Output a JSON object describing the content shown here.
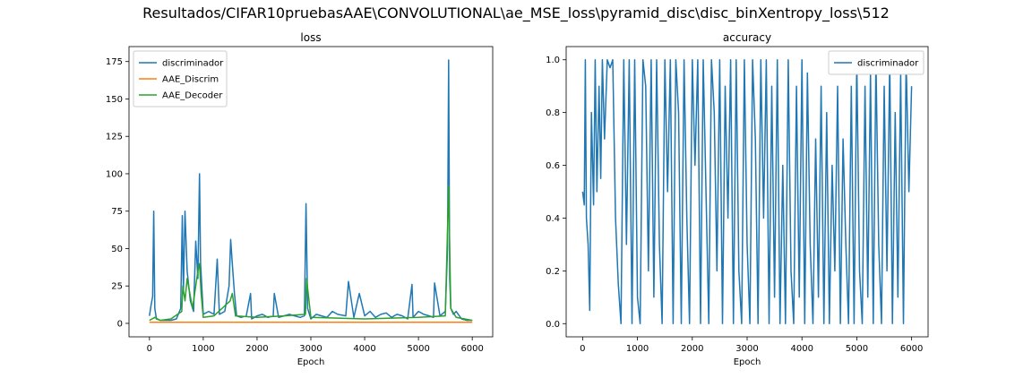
{
  "figure": {
    "title": "Resultados/CIFAR10pruebasAAE\\CONVOLUTIONAL\\ae_MSE_loss\\pyramid_disc\\disc_binXentropy_loss\\512"
  },
  "colors": {
    "blue": "#1f77b4",
    "orange": "#ff7f0e",
    "green": "#2ca02c"
  },
  "chart_data": [
    {
      "type": "line",
      "title": "loss",
      "xlabel": "Epoch",
      "ylabel": "",
      "xlim": [
        -380,
        6380
      ],
      "ylim": [
        -9,
        185
      ],
      "xticks": [
        0,
        1000,
        2000,
        3000,
        4000,
        5000,
        6000
      ],
      "xtick_labels": [
        "0",
        "1000",
        "2000",
        "3000",
        "4000",
        "5000",
        "6000"
      ],
      "yticks": [
        0,
        25,
        50,
        75,
        100,
        125,
        150,
        175
      ],
      "ytick_labels": [
        "0",
        "25",
        "50",
        "75",
        "100",
        "125",
        "150",
        "175"
      ],
      "grid": false,
      "legend": "top-left",
      "series": [
        {
          "name": "discriminador",
          "color": "#1f77b4",
          "x": [
            0,
            30,
            60,
            80,
            100,
            130,
            200,
            300,
            400,
            500,
            580,
            610,
            630,
            660,
            700,
            760,
            820,
            860,
            900,
            930,
            950,
            980,
            1000,
            1100,
            1200,
            1260,
            1300,
            1400,
            1480,
            1510,
            1540,
            1580,
            1620,
            1700,
            1800,
            1880,
            1900,
            1950,
            2000,
            2100,
            2200,
            2300,
            2320,
            2400,
            2500,
            2600,
            2700,
            2800,
            2880,
            2910,
            2940,
            3000,
            3100,
            3200,
            3300,
            3400,
            3500,
            3650,
            3700,
            3800,
            3900,
            4000,
            4100,
            4200,
            4300,
            4400,
            4500,
            4600,
            4700,
            4800,
            4880,
            4900,
            5000,
            5100,
            5200,
            5280,
            5300,
            5400,
            5500,
            5540,
            5560,
            5580,
            5600,
            5650,
            5700,
            5800,
            5900,
            6000
          ],
          "values": [
            5,
            12,
            18,
            75,
            10,
            3,
            2,
            2,
            2,
            3,
            10,
            72,
            20,
            75,
            35,
            15,
            8,
            55,
            30,
            100,
            40,
            20,
            6,
            8,
            6,
            43,
            6,
            8,
            25,
            56,
            40,
            20,
            5,
            4,
            5,
            20,
            3,
            4,
            5,
            6,
            4,
            5,
            20,
            4,
            5,
            6,
            5,
            4,
            5,
            80,
            10,
            3,
            6,
            5,
            4,
            8,
            6,
            5,
            28,
            4,
            20,
            5,
            8,
            4,
            6,
            7,
            4,
            6,
            5,
            3,
            26,
            4,
            8,
            6,
            5,
            4,
            27,
            5,
            8,
            50,
            176,
            30,
            10,
            6,
            8,
            3,
            2,
            2
          ]
        },
        {
          "name": "AAE_Discrim",
          "color": "#ff7f0e",
          "x": [
            0,
            1000,
            2000,
            3000,
            4000,
            5000,
            6000
          ],
          "values": [
            0.7,
            0.7,
            0.7,
            0.7,
            0.7,
            0.7,
            0.7
          ]
        },
        {
          "name": "AAE_Decoder",
          "color": "#2ca02c",
          "x": [
            0,
            100,
            200,
            400,
            600,
            620,
            660,
            700,
            800,
            900,
            930,
            960,
            1000,
            1200,
            1500,
            1540,
            1600,
            2000,
            2500,
            2900,
            2920,
            3000,
            4000,
            5000,
            5500,
            5560,
            5600,
            5700,
            6000
          ],
          "values": [
            2,
            4,
            2,
            3,
            8,
            25,
            15,
            30,
            10,
            35,
            40,
            20,
            4,
            5,
            15,
            20,
            5,
            4,
            5,
            6,
            30,
            4,
            3,
            4,
            5,
            92,
            10,
            4,
            2
          ]
        }
      ]
    },
    {
      "type": "line",
      "title": "accuracy",
      "xlabel": "Epoch",
      "ylabel": "",
      "xlim": [
        -300,
        6300
      ],
      "ylim": [
        -0.05,
        1.05
      ],
      "xticks": [
        0,
        1000,
        2000,
        3000,
        4000,
        5000,
        6000
      ],
      "xtick_labels": [
        "0",
        "1000",
        "2000",
        "3000",
        "4000",
        "5000",
        "6000"
      ],
      "yticks": [
        0.0,
        0.2,
        0.4,
        0.6,
        0.8,
        1.0
      ],
      "ytick_labels": [
        "0.0",
        "0.2",
        "0.4",
        "0.6",
        "0.8",
        "1.0"
      ],
      "grid": false,
      "legend": "top-right",
      "series": [
        {
          "name": "discriminador",
          "color": "#1f77b4",
          "x": [
            0,
            30,
            50,
            70,
            100,
            130,
            160,
            200,
            230,
            260,
            300,
            330,
            360,
            400,
            450,
            500,
            550,
            600,
            650,
            700,
            750,
            800,
            850,
            900,
            950,
            1000,
            1050,
            1100,
            1150,
            1200,
            1250,
            1300,
            1350,
            1400,
            1450,
            1500,
            1550,
            1600,
            1650,
            1700,
            1750,
            1800,
            1850,
            1900,
            1950,
            2000,
            2050,
            2100,
            2150,
            2200,
            2250,
            2300,
            2350,
            2400,
            2450,
            2500,
            2550,
            2600,
            2650,
            2700,
            2750,
            2800,
            2850,
            2900,
            2950,
            3000,
            3050,
            3100,
            3150,
            3200,
            3250,
            3300,
            3350,
            3400,
            3450,
            3500,
            3550,
            3600,
            3650,
            3700,
            3750,
            3800,
            3850,
            3900,
            3950,
            4000,
            4050,
            4100,
            4150,
            4200,
            4250,
            4300,
            4350,
            4400,
            4450,
            4500,
            4550,
            4600,
            4650,
            4700,
            4750,
            4800,
            4850,
            4900,
            4950,
            5000,
            5050,
            5100,
            5150,
            5200,
            5250,
            5300,
            5350,
            5400,
            5450,
            5500,
            5550,
            5600,
            5650,
            5700,
            5750,
            5800,
            5850,
            5900,
            5950,
            6000
          ],
          "values": [
            0.5,
            0.45,
            1.0,
            0.4,
            0.3,
            0.05,
            0.8,
            0.45,
            1.0,
            0.5,
            0.9,
            0.55,
            1.0,
            0.7,
            1.0,
            0.97,
            1.0,
            0.4,
            0.15,
            0.0,
            1.0,
            0.3,
            1.0,
            0.0,
            1.0,
            0.1,
            0.0,
            1.0,
            0.9,
            0.2,
            1.0,
            0.1,
            1.0,
            0.3,
            0.0,
            1.0,
            0.5,
            1.0,
            0.0,
            1.0,
            0.8,
            0.0,
            1.0,
            0.4,
            0.0,
            1.0,
            0.6,
            1.0,
            0.0,
            1.0,
            0.5,
            0.0,
            1.0,
            0.8,
            0.2,
            1.0,
            0.0,
            0.9,
            0.4,
            1.0,
            0.0,
            1.0,
            0.2,
            0.0,
            1.0,
            0.3,
            0.0,
            1.0,
            0.7,
            0.0,
            1.0,
            0.4,
            1.0,
            0.0,
            0.9,
            0.1,
            1.0,
            0.0,
            0.6,
            0.0,
            1.0,
            0.2,
            0.0,
            0.9,
            0.1,
            1.0,
            0.0,
            0.95,
            0.3,
            0.0,
            0.7,
            0.1,
            0.9,
            0.0,
            0.8,
            0.0,
            0.6,
            0.2,
            0.9,
            0.0,
            0.7,
            0.3,
            0.0,
            0.9,
            0.0,
            1.0,
            0.2,
            0.0,
            0.9,
            0.1,
            0.95,
            0.0,
            1.0,
            0.3,
            0.0,
            0.9,
            0.2,
            1.0,
            0.0,
            0.8,
            0.1,
            0.95,
            0.0,
            1.0,
            0.5,
            0.9
          ]
        }
      ]
    }
  ]
}
